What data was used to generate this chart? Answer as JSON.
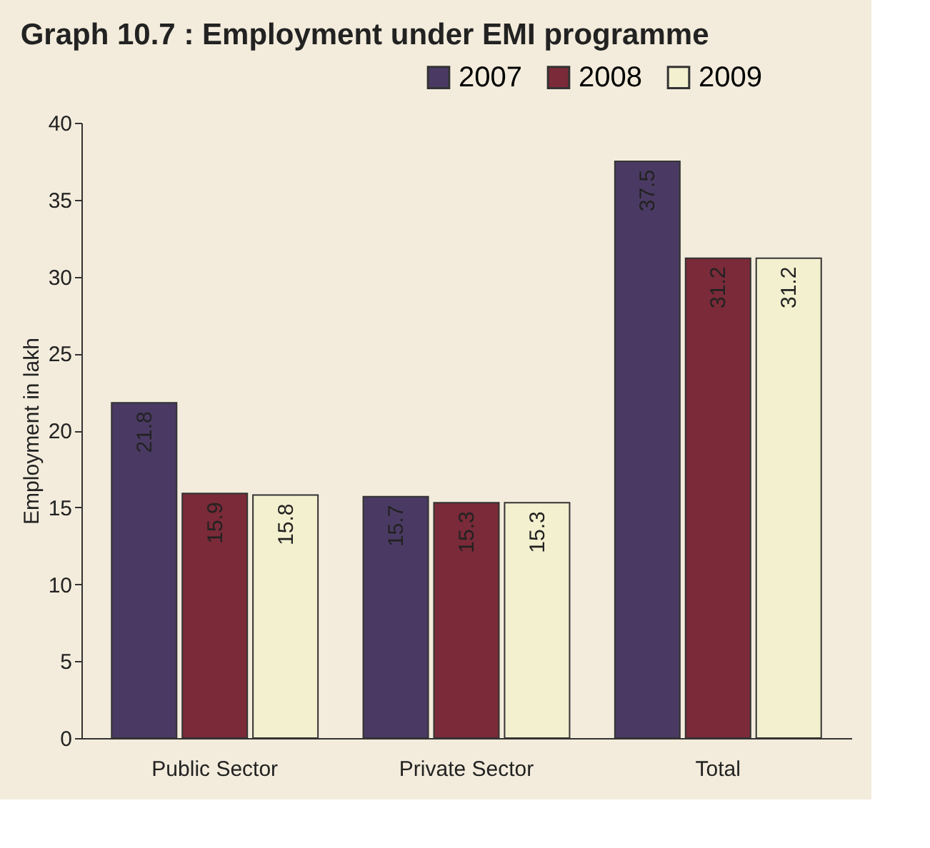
{
  "chart_data": {
    "type": "bar",
    "title": "Graph 10.7 : Employment under EMI programme",
    "ylabel": "Employment in lakh",
    "categories": [
      "Public Sector",
      "Private Sector",
      "Total"
    ],
    "series": [
      {
        "name": "2007",
        "color": "#4a3a63",
        "values": [
          21.8,
          15.7,
          37.5
        ]
      },
      {
        "name": "2008",
        "color": "#7a2a38",
        "values": [
          15.9,
          15.3,
          31.2
        ]
      },
      {
        "name": "2009",
        "color": "#f3f0cf",
        "values": [
          15.8,
          15.3,
          31.2
        ]
      }
    ],
    "ylim": [
      0,
      40
    ],
    "yticks": [
      0,
      5,
      10,
      15,
      20,
      25,
      30,
      35,
      40
    ],
    "data_labels": true,
    "legend": "top right",
    "grid": false
  }
}
